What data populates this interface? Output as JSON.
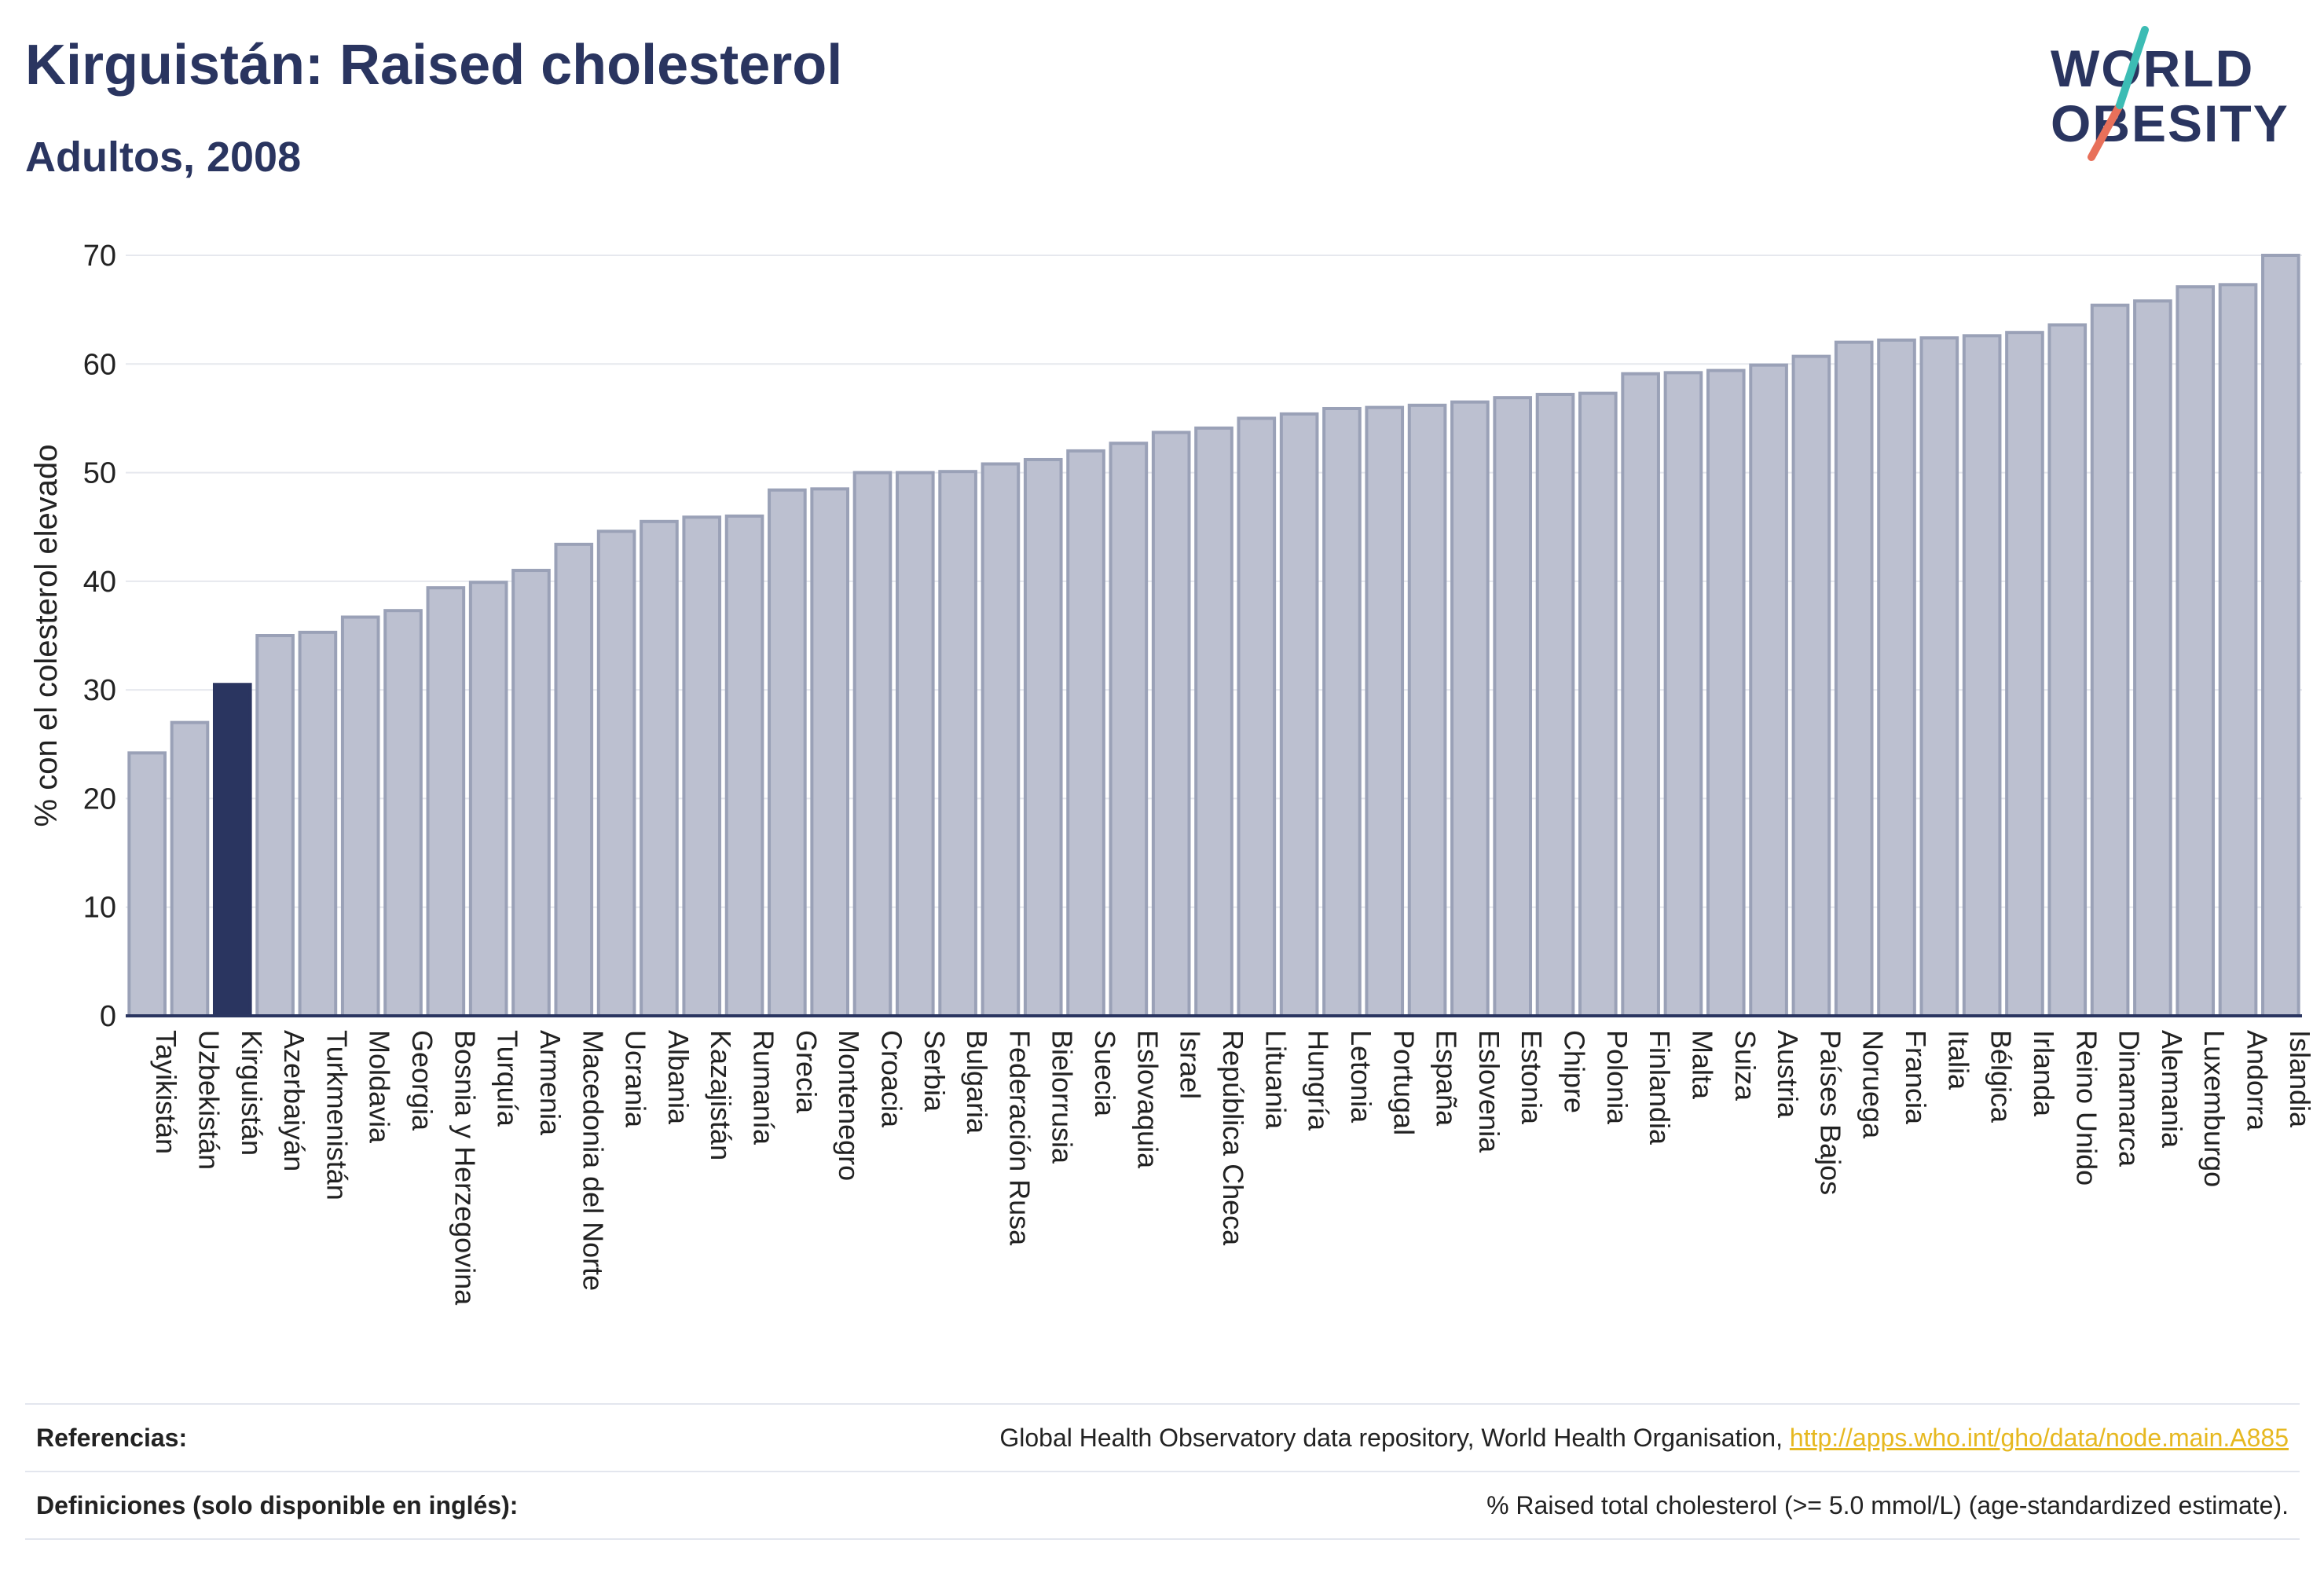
{
  "header": {
    "title": "Kirguistán: Raised cholesterol",
    "subtitle": "Adultos, 2008"
  },
  "logo": {
    "line1": "WORLD",
    "line2": "OBESITY"
  },
  "chart_data": {
    "type": "bar",
    "ylabel": "% con el colesterol elevado",
    "xlabel": "",
    "ylim": [
      0,
      70
    ],
    "yticks": [
      0,
      10,
      20,
      30,
      40,
      50,
      60,
      70
    ],
    "grid": true,
    "highlight": "Kirguistán",
    "colors": {
      "bar": "#bcc0d0",
      "bar_edge": "#9aa1b7",
      "highlight": "#2a3560",
      "axis": "#2a3560",
      "grid": "#e6e8ee"
    },
    "categories": [
      "Tayikistán",
      "Uzbekistán",
      "Kirguistán",
      "Azerbaiyán",
      "Turkmenistán",
      "Moldavia",
      "Georgia",
      "Bosnia y Herzegovina",
      "Turquía",
      "Armenia",
      "Macedonia del Norte",
      "Ucrania",
      "Albania",
      "Kazajistán",
      "Rumanía",
      "Grecia",
      "Montenegro",
      "Croacia",
      "Serbia",
      "Bulgaria",
      "Federación Rusa",
      "Bielorrusia",
      "Suecia",
      "Eslovaquia",
      "Israel",
      "República Checa",
      "Lituania",
      "Hungría",
      "Letonia",
      "Portugal",
      "España",
      "Eslovenia",
      "Estonia",
      "Chipre",
      "Polonia",
      "Finlandia",
      "Malta",
      "Suiza",
      "Austria",
      "Países Bajos",
      "Noruega",
      "Francia",
      "Italia",
      "Bélgica",
      "Irlanda",
      "Reino Unido",
      "Dinamarca",
      "Alemania",
      "Luxemburgo",
      "Andorra",
      "Islandia"
    ],
    "values": [
      24.2,
      27.0,
      30.5,
      35.0,
      35.3,
      36.7,
      37.3,
      39.4,
      39.9,
      41.0,
      43.4,
      44.6,
      45.5,
      45.9,
      46.0,
      48.4,
      48.5,
      50.0,
      50.0,
      50.1,
      50.8,
      51.2,
      52.0,
      52.7,
      53.7,
      54.1,
      55.0,
      55.4,
      55.9,
      56.0,
      56.2,
      56.5,
      56.9,
      57.2,
      57.3,
      59.1,
      59.2,
      59.4,
      59.9,
      60.7,
      62.0,
      62.2,
      62.4,
      62.6,
      62.9,
      63.6,
      65.4,
      65.8,
      67.1,
      67.3,
      70.0
    ]
  },
  "footer": {
    "references_label": "Referencias:",
    "references_text": "Global Health Observatory data repository, World Health Organisation, ",
    "references_link": "http://apps.who.int/gho/data/node.main.A885",
    "definitions_label": "Definiciones (solo disponible en inglés):",
    "definitions_text": "% Raised total cholesterol (>= 5.0 mmol/L) (age-standardized estimate)."
  }
}
